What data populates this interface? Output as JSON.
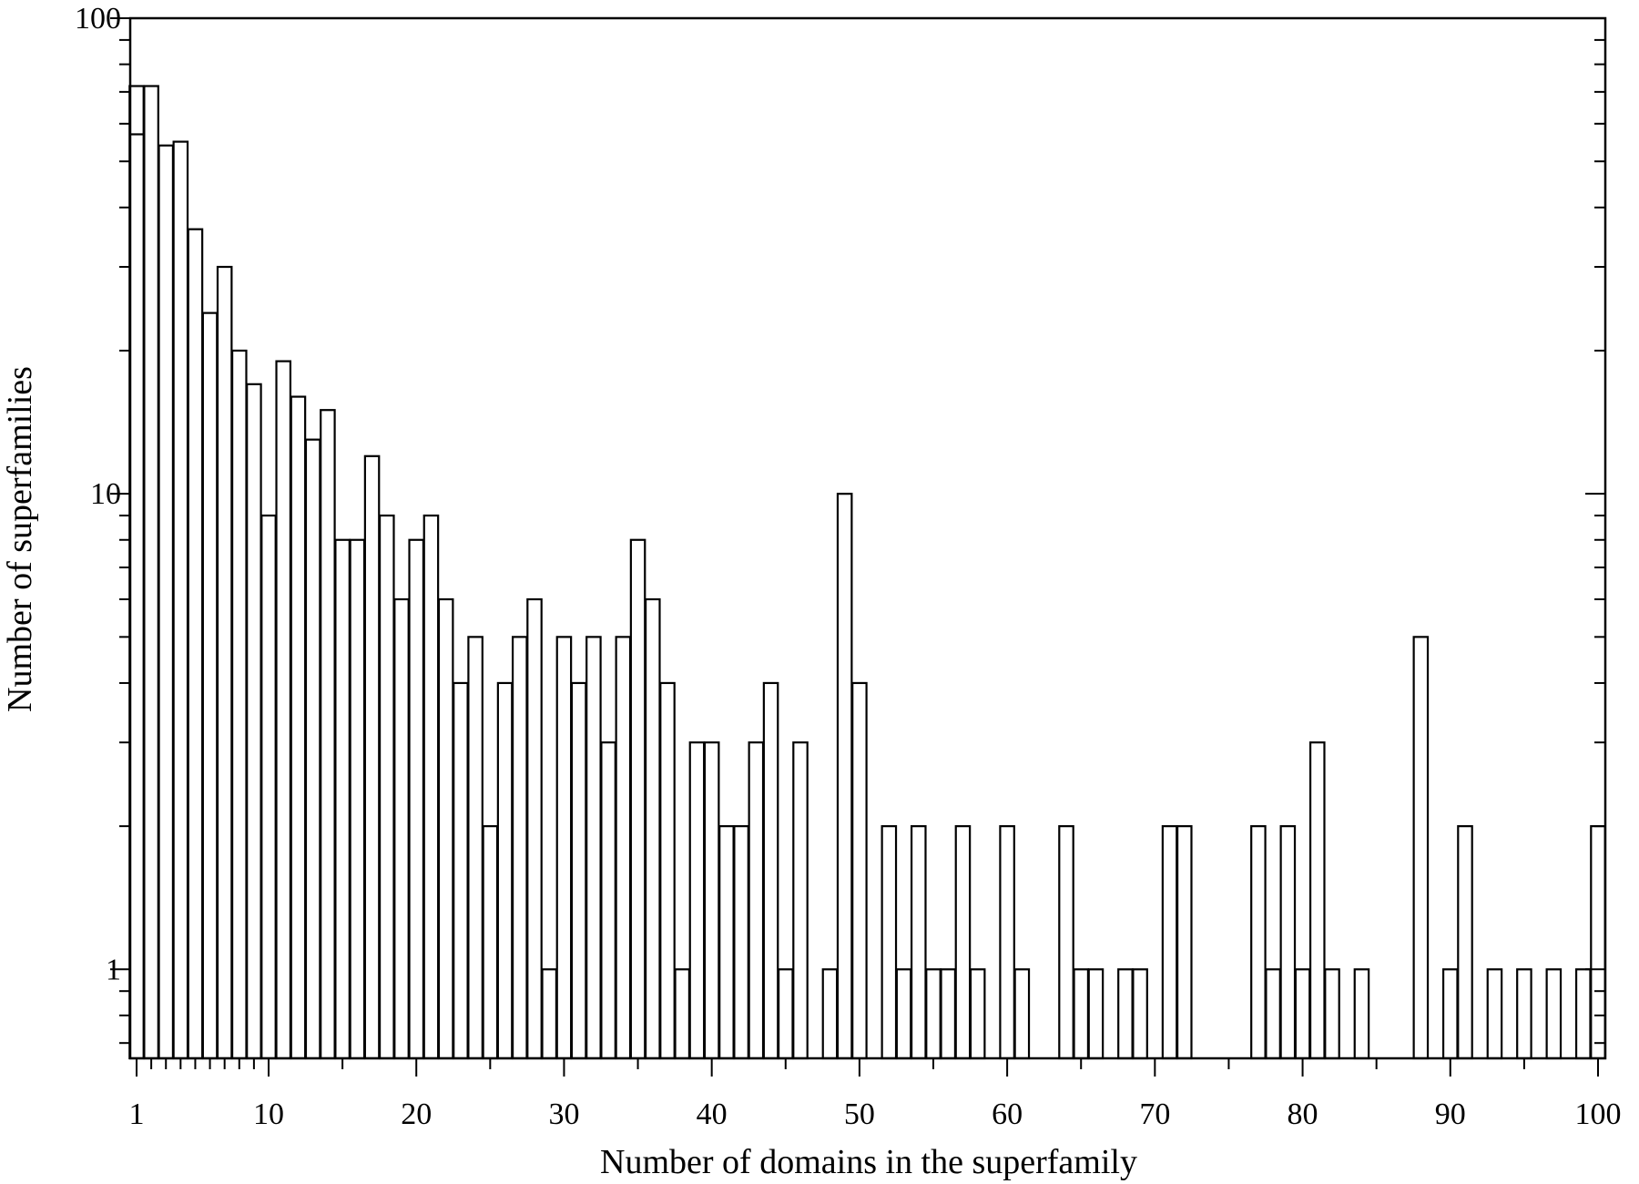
{
  "chart_data": {
    "type": "bar",
    "xlabel": "Number of domains in the superfamily",
    "ylabel": "Number of superfamilies",
    "xlim": [
      1,
      100
    ],
    "ylim": [
      0.65,
      100
    ],
    "yscale": "log",
    "xscale": "index-then-linear",
    "grid": false,
    "x_tick_labels": [
      "1",
      "10",
      "20",
      "30",
      "40",
      "50",
      "60",
      "70",
      "80",
      "90",
      "100"
    ],
    "y_tick_labels": [
      "1",
      "10",
      "100"
    ],
    "x": [
      1,
      2,
      3,
      4,
      5,
      6,
      7,
      8,
      9,
      10,
      11,
      12,
      13,
      14,
      15,
      16,
      17,
      18,
      19,
      20,
      21,
      22,
      23,
      24,
      25,
      26,
      27,
      28,
      29,
      30,
      31,
      32,
      33,
      34,
      35,
      36,
      37,
      38,
      39,
      40,
      41,
      42,
      43,
      44,
      45,
      46,
      47,
      48,
      49,
      50,
      51,
      52,
      53,
      54,
      55,
      56,
      57,
      58,
      59,
      60,
      61,
      62,
      63,
      64,
      65,
      66,
      67,
      68,
      69,
      70,
      71,
      72,
      73,
      74,
      75,
      76,
      77,
      78,
      79,
      80,
      81,
      82,
      83,
      84,
      85,
      86,
      87,
      88,
      89,
      90,
      91,
      92,
      93,
      94,
      95,
      96,
      97,
      98,
      99,
      100
    ],
    "values": [
      72,
      72,
      54,
      55,
      36,
      24,
      30,
      20,
      17,
      9,
      19,
      16,
      13,
      15,
      8,
      8,
      12,
      9,
      6,
      8,
      9,
      6,
      4,
      5,
      2,
      4,
      5,
      6,
      1,
      5,
      4,
      5,
      3,
      5,
      8,
      6,
      4,
      1,
      3,
      3,
      2,
      2,
      3,
      4,
      1,
      3,
      0,
      1,
      10,
      4,
      0,
      2,
      1,
      2,
      1,
      1,
      2,
      1,
      0,
      2,
      1,
      0,
      0,
      2,
      1,
      1,
      0,
      1,
      1,
      0,
      2,
      2,
      0,
      0,
      0,
      0,
      2,
      1,
      2,
      1,
      3,
      1,
      0,
      1,
      0,
      0,
      0,
      5,
      0,
      1,
      2,
      0,
      1,
      0,
      1,
      0,
      1,
      0,
      1,
      2
    ],
    "inner_values": [
      57,
      null,
      null,
      null,
      null,
      null,
      null,
      null,
      null,
      null,
      null,
      null,
      null,
      null,
      null,
      null,
      null,
      null,
      null,
      null,
      null,
      null,
      null,
      null,
      null,
      null,
      null,
      null,
      null,
      null,
      null,
      null,
      null,
      null,
      null,
      null,
      null,
      null,
      null,
      null,
      null,
      null,
      null,
      null,
      null,
      null,
      null,
      null,
      null,
      null,
      null,
      null,
      null,
      null,
      null,
      null,
      null,
      null,
      null,
      null,
      null,
      null,
      null,
      null,
      null,
      null,
      null,
      null,
      null,
      null,
      null,
      null,
      null,
      null,
      null,
      null,
      null,
      null,
      null,
      null,
      null,
      null,
      null,
      null,
      null,
      null,
      null,
      null,
      null,
      null,
      null,
      null,
      null,
      null,
      null,
      null,
      null,
      null,
      null,
      null
    ],
    "colors": {
      "axis": "#000000",
      "bar_fill": "#ffffff",
      "bar_stroke": "#000000"
    }
  }
}
